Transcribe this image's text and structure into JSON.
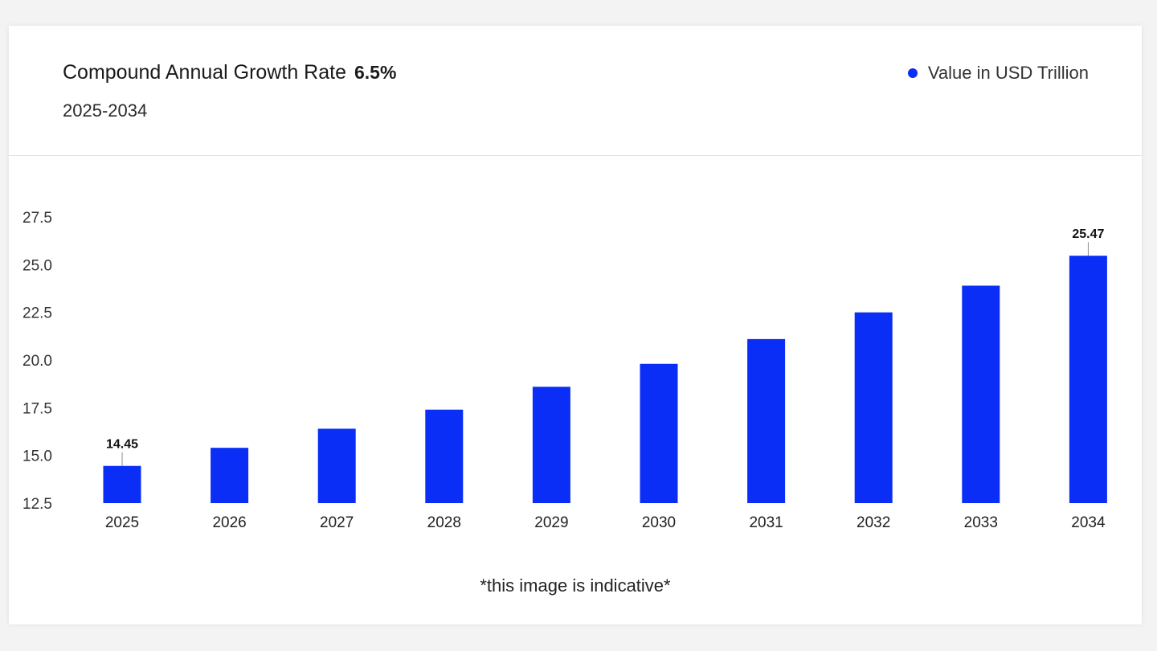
{
  "header": {
    "cagr_label": "Compound Annual Growth Rate",
    "cagr_value": "6.5%",
    "period": "2025-2034"
  },
  "legend": {
    "label": "Value in USD Trillion",
    "color": "#0a2ef5"
  },
  "note": "*this image is indicative*",
  "chart_data": {
    "type": "bar",
    "categories": [
      "2025",
      "2026",
      "2027",
      "2028",
      "2029",
      "2030",
      "2031",
      "2032",
      "2033",
      "2034"
    ],
    "series": [
      {
        "name": "Value in USD Trillion",
        "values": [
          14.45,
          15.4,
          16.4,
          17.4,
          18.6,
          19.8,
          21.1,
          22.5,
          23.9,
          25.47
        ]
      }
    ],
    "data_labels": {
      "0": "14.45",
      "9": "25.47"
    },
    "yticks": [
      "12.5",
      "15.0",
      "17.5",
      "20.0",
      "22.5",
      "25.0",
      "27.5"
    ],
    "ylim": [
      12.5,
      27.5
    ],
    "grid": false,
    "bar_color": "#0a2ef5"
  }
}
